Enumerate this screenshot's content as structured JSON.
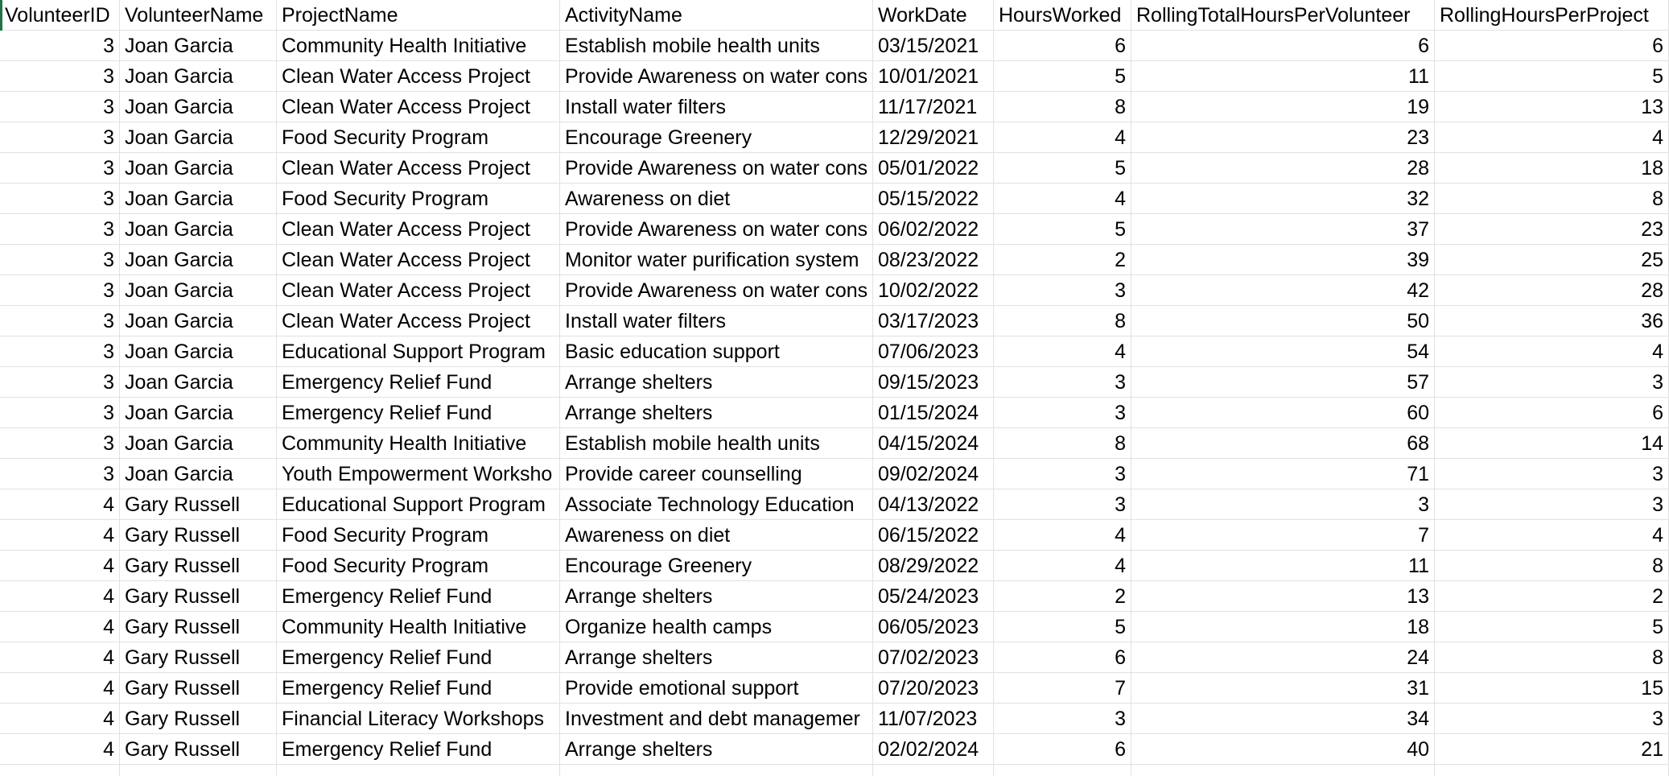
{
  "columns": [
    "VolunteerID",
    "VolunteerName",
    "ProjectName",
    "ActivityName",
    "WorkDate",
    "HoursWorked",
    "RollingTotalHoursPerVolunteer",
    "RollingHoursPerProject"
  ],
  "rows": [
    [
      "3",
      "Joan Garcia",
      "Community Health Initiative",
      "Establish mobile health units",
      "03/15/2021",
      "6",
      "6",
      "6"
    ],
    [
      "3",
      "Joan Garcia",
      "Clean Water Access Project",
      "Provide Awareness on water cons",
      "10/01/2021",
      "5",
      "11",
      "5"
    ],
    [
      "3",
      "Joan Garcia",
      "Clean Water Access Project",
      "Install water filters",
      "11/17/2021",
      "8",
      "19",
      "13"
    ],
    [
      "3",
      "Joan Garcia",
      "Food Security Program",
      "Encourage Greenery",
      "12/29/2021",
      "4",
      "23",
      "4"
    ],
    [
      "3",
      "Joan Garcia",
      "Clean Water Access Project",
      "Provide Awareness on water cons",
      "05/01/2022",
      "5",
      "28",
      "18"
    ],
    [
      "3",
      "Joan Garcia",
      "Food Security Program",
      "Awareness on diet",
      "05/15/2022",
      "4",
      "32",
      "8"
    ],
    [
      "3",
      "Joan Garcia",
      "Clean Water Access Project",
      "Provide Awareness on water cons",
      "06/02/2022",
      "5",
      "37",
      "23"
    ],
    [
      "3",
      "Joan Garcia",
      "Clean Water Access Project",
      "Monitor water purification system",
      "08/23/2022",
      "2",
      "39",
      "25"
    ],
    [
      "3",
      "Joan Garcia",
      "Clean Water Access Project",
      "Provide Awareness on water cons",
      "10/02/2022",
      "3",
      "42",
      "28"
    ],
    [
      "3",
      "Joan Garcia",
      "Clean Water Access Project",
      "Install water filters",
      "03/17/2023",
      "8",
      "50",
      "36"
    ],
    [
      "3",
      "Joan Garcia",
      "Educational Support Program",
      "Basic education support",
      "07/06/2023",
      "4",
      "54",
      "4"
    ],
    [
      "3",
      "Joan Garcia",
      "Emergency Relief Fund",
      "Arrange shelters",
      "09/15/2023",
      "3",
      "57",
      "3"
    ],
    [
      "3",
      "Joan Garcia",
      "Emergency Relief Fund",
      "Arrange shelters",
      "01/15/2024",
      "3",
      "60",
      "6"
    ],
    [
      "3",
      "Joan Garcia",
      "Community Health Initiative",
      "Establish mobile health units",
      "04/15/2024",
      "8",
      "68",
      "14"
    ],
    [
      "3",
      "Joan Garcia",
      "Youth Empowerment Worksho",
      "Provide career counselling",
      "09/02/2024",
      "3",
      "71",
      "3"
    ],
    [
      "4",
      "Gary Russell",
      "Educational Support Program",
      "Associate Technology Education",
      "04/13/2022",
      "3",
      "3",
      "3"
    ],
    [
      "4",
      "Gary Russell",
      "Food Security Program",
      "Awareness on diet",
      "06/15/2022",
      "4",
      "7",
      "4"
    ],
    [
      "4",
      "Gary Russell",
      "Food Security Program",
      "Encourage Greenery",
      "08/29/2022",
      "4",
      "11",
      "8"
    ],
    [
      "4",
      "Gary Russell",
      "Emergency Relief Fund",
      "Arrange shelters",
      "05/24/2023",
      "2",
      "13",
      "2"
    ],
    [
      "4",
      "Gary Russell",
      "Community Health Initiative",
      "Organize health camps",
      "06/05/2023",
      "5",
      "18",
      "5"
    ],
    [
      "4",
      "Gary Russell",
      "Emergency Relief Fund",
      "Arrange shelters",
      "07/02/2023",
      "6",
      "24",
      "8"
    ],
    [
      "4",
      "Gary Russell",
      "Emergency Relief Fund",
      "Provide emotional support",
      "07/20/2023",
      "7",
      "31",
      "15"
    ],
    [
      "4",
      "Gary Russell",
      "Financial Literacy Workshops",
      "Investment and debt managemer",
      "11/07/2023",
      "3",
      "34",
      "3"
    ],
    [
      "4",
      "Gary Russell",
      "Emergency Relief Fund",
      "Arrange shelters",
      "02/02/2024",
      "6",
      "40",
      "21"
    ]
  ],
  "colors": {
    "grid_line": "#e1e1e1",
    "active_cell": "#217346"
  }
}
